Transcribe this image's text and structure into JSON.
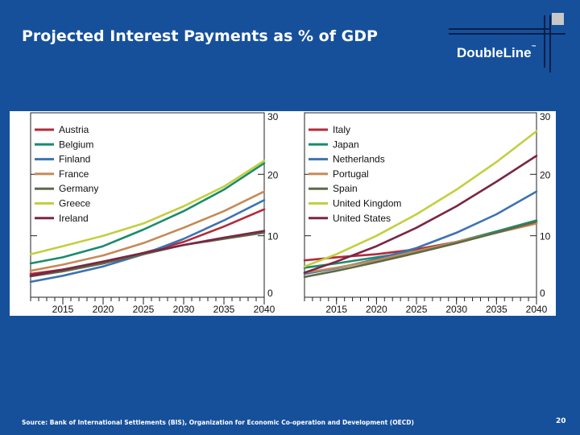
{
  "slide": {
    "title": "Projected Interest Payments as % of GDP",
    "logo_text": "DoubleLine",
    "logo_mark": "™",
    "source": "Source: Bank of International Settlements (BIS), Organization for Economic Co-operation and Development (OECD)",
    "page_number": "20"
  },
  "colors": {
    "background": "#16509b",
    "panel": "#ffffff"
  },
  "chart_data": [
    {
      "type": "line",
      "title": "",
      "xlabel": "",
      "ylabel": "",
      "xlim": [
        2011,
        2040
      ],
      "ylim": [
        0,
        30
      ],
      "x_ticks": [
        2015,
        2020,
        2025,
        2030,
        2035,
        2040
      ],
      "y_ticks": [
        0,
        10,
        20,
        30
      ],
      "legend_position": "top-left",
      "x": [
        2011,
        2015,
        2020,
        2025,
        2030,
        2035,
        2040
      ],
      "series": [
        {
          "name": "Austria",
          "color": "#b22b3a",
          "values": [
            3.8,
            4.5,
            5.5,
            7.2,
            9.0,
            11.5,
            14.3
          ]
        },
        {
          "name": "Belgium",
          "color": "#1a8c6c",
          "values": [
            5.5,
            6.5,
            8.3,
            11.0,
            14.0,
            17.5,
            21.8
          ]
        },
        {
          "name": "Finland",
          "color": "#3e73b0",
          "values": [
            2.5,
            3.5,
            5.0,
            7.0,
            9.5,
            12.5,
            15.8
          ]
        },
        {
          "name": "France",
          "color": "#c48a56",
          "values": [
            4.3,
            5.3,
            6.8,
            8.8,
            11.3,
            14.0,
            17.2
          ]
        },
        {
          "name": "Germany",
          "color": "#5c6b47",
          "values": [
            3.4,
            4.2,
            5.5,
            7.0,
            8.5,
            9.5,
            10.5
          ]
        },
        {
          "name": "Greece",
          "color": "#c3cf3f",
          "values": [
            7.0,
            8.3,
            10.0,
            12.0,
            14.8,
            18.0,
            22.2
          ]
        },
        {
          "name": "Ireland",
          "color": "#7b2545",
          "values": [
            3.5,
            4.5,
            5.8,
            7.2,
            8.5,
            9.7,
            10.8
          ]
        }
      ]
    },
    {
      "type": "line",
      "title": "",
      "xlabel": "",
      "ylabel": "",
      "xlim": [
        2011,
        2040
      ],
      "ylim": [
        0,
        30
      ],
      "x_ticks": [
        2015,
        2020,
        2025,
        2030,
        2035,
        2040
      ],
      "y_ticks": [
        0,
        10,
        20,
        30
      ],
      "legend_position": "top-left",
      "x": [
        2011,
        2015,
        2020,
        2025,
        2030,
        2035,
        2040
      ],
      "series": [
        {
          "name": "Italy",
          "color": "#b22b3a",
          "values": [
            6.0,
            6.5,
            7.0,
            7.8,
            9.0,
            10.5,
            12.0
          ]
        },
        {
          "name": "Japan",
          "color": "#1a8c6c",
          "values": [
            4.8,
            5.5,
            6.5,
            7.5,
            9.0,
            10.7,
            12.5
          ]
        },
        {
          "name": "Netherlands",
          "color": "#3e73b0",
          "values": [
            3.8,
            4.7,
            6.2,
            8.0,
            10.5,
            13.5,
            17.2
          ]
        },
        {
          "name": "Portugal",
          "color": "#c48a56",
          "values": [
            4.0,
            4.8,
            6.0,
            7.5,
            9.0,
            10.5,
            12.0
          ]
        },
        {
          "name": "Spain",
          "color": "#5c6b47",
          "values": [
            3.3,
            4.3,
            5.7,
            7.2,
            8.8,
            10.5,
            12.3
          ]
        },
        {
          "name": "United Kingdom",
          "color": "#c3cf3f",
          "values": [
            5.0,
            7.0,
            10.0,
            13.5,
            17.5,
            22.0,
            27.0
          ]
        },
        {
          "name": "United States",
          "color": "#7b2545",
          "values": [
            4.0,
            5.8,
            8.3,
            11.3,
            14.8,
            18.8,
            23.0
          ]
        }
      ]
    }
  ]
}
